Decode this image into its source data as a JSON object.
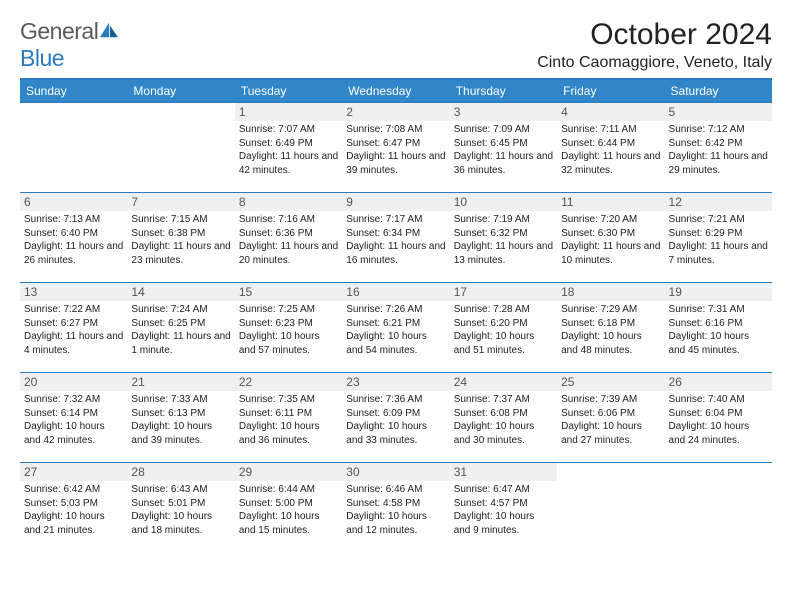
{
  "brand": {
    "name1": "General",
    "name2": "Blue"
  },
  "title": "October 2024",
  "location": "Cinto Caomaggiore, Veneto, Italy",
  "colors": {
    "header_bg": "#3186c9",
    "header_text": "#ffffff",
    "rule": "#2b7bbf",
    "daynum_bg": "#eef0f1",
    "text": "#222222",
    "logo_gray": "#5a5a5a",
    "logo_blue": "#2b7bbf"
  },
  "layout": {
    "cols": 7,
    "rows": 5,
    "first_weekday": "Sunday",
    "first_day_col": 2
  },
  "weekdays": [
    "Sunday",
    "Monday",
    "Tuesday",
    "Wednesday",
    "Thursday",
    "Friday",
    "Saturday"
  ],
  "days": [
    {
      "n": 1,
      "sunrise": "7:07 AM",
      "sunset": "6:49 PM",
      "daylight": "11 hours and 42 minutes."
    },
    {
      "n": 2,
      "sunrise": "7:08 AM",
      "sunset": "6:47 PM",
      "daylight": "11 hours and 39 minutes."
    },
    {
      "n": 3,
      "sunrise": "7:09 AM",
      "sunset": "6:45 PM",
      "daylight": "11 hours and 36 minutes."
    },
    {
      "n": 4,
      "sunrise": "7:11 AM",
      "sunset": "6:44 PM",
      "daylight": "11 hours and 32 minutes."
    },
    {
      "n": 5,
      "sunrise": "7:12 AM",
      "sunset": "6:42 PM",
      "daylight": "11 hours and 29 minutes."
    },
    {
      "n": 6,
      "sunrise": "7:13 AM",
      "sunset": "6:40 PM",
      "daylight": "11 hours and 26 minutes."
    },
    {
      "n": 7,
      "sunrise": "7:15 AM",
      "sunset": "6:38 PM",
      "daylight": "11 hours and 23 minutes."
    },
    {
      "n": 8,
      "sunrise": "7:16 AM",
      "sunset": "6:36 PM",
      "daylight": "11 hours and 20 minutes."
    },
    {
      "n": 9,
      "sunrise": "7:17 AM",
      "sunset": "6:34 PM",
      "daylight": "11 hours and 16 minutes."
    },
    {
      "n": 10,
      "sunrise": "7:19 AM",
      "sunset": "6:32 PM",
      "daylight": "11 hours and 13 minutes."
    },
    {
      "n": 11,
      "sunrise": "7:20 AM",
      "sunset": "6:30 PM",
      "daylight": "11 hours and 10 minutes."
    },
    {
      "n": 12,
      "sunrise": "7:21 AM",
      "sunset": "6:29 PM",
      "daylight": "11 hours and 7 minutes."
    },
    {
      "n": 13,
      "sunrise": "7:22 AM",
      "sunset": "6:27 PM",
      "daylight": "11 hours and 4 minutes."
    },
    {
      "n": 14,
      "sunrise": "7:24 AM",
      "sunset": "6:25 PM",
      "daylight": "11 hours and 1 minute."
    },
    {
      "n": 15,
      "sunrise": "7:25 AM",
      "sunset": "6:23 PM",
      "daylight": "10 hours and 57 minutes."
    },
    {
      "n": 16,
      "sunrise": "7:26 AM",
      "sunset": "6:21 PM",
      "daylight": "10 hours and 54 minutes."
    },
    {
      "n": 17,
      "sunrise": "7:28 AM",
      "sunset": "6:20 PM",
      "daylight": "10 hours and 51 minutes."
    },
    {
      "n": 18,
      "sunrise": "7:29 AM",
      "sunset": "6:18 PM",
      "daylight": "10 hours and 48 minutes."
    },
    {
      "n": 19,
      "sunrise": "7:31 AM",
      "sunset": "6:16 PM",
      "daylight": "10 hours and 45 minutes."
    },
    {
      "n": 20,
      "sunrise": "7:32 AM",
      "sunset": "6:14 PM",
      "daylight": "10 hours and 42 minutes."
    },
    {
      "n": 21,
      "sunrise": "7:33 AM",
      "sunset": "6:13 PM",
      "daylight": "10 hours and 39 minutes."
    },
    {
      "n": 22,
      "sunrise": "7:35 AM",
      "sunset": "6:11 PM",
      "daylight": "10 hours and 36 minutes."
    },
    {
      "n": 23,
      "sunrise": "7:36 AM",
      "sunset": "6:09 PM",
      "daylight": "10 hours and 33 minutes."
    },
    {
      "n": 24,
      "sunrise": "7:37 AM",
      "sunset": "6:08 PM",
      "daylight": "10 hours and 30 minutes."
    },
    {
      "n": 25,
      "sunrise": "7:39 AM",
      "sunset": "6:06 PM",
      "daylight": "10 hours and 27 minutes."
    },
    {
      "n": 26,
      "sunrise": "7:40 AM",
      "sunset": "6:04 PM",
      "daylight": "10 hours and 24 minutes."
    },
    {
      "n": 27,
      "sunrise": "6:42 AM",
      "sunset": "5:03 PM",
      "daylight": "10 hours and 21 minutes."
    },
    {
      "n": 28,
      "sunrise": "6:43 AM",
      "sunset": "5:01 PM",
      "daylight": "10 hours and 18 minutes."
    },
    {
      "n": 29,
      "sunrise": "6:44 AM",
      "sunset": "5:00 PM",
      "daylight": "10 hours and 15 minutes."
    },
    {
      "n": 30,
      "sunrise": "6:46 AM",
      "sunset": "4:58 PM",
      "daylight": "10 hours and 12 minutes."
    },
    {
      "n": 31,
      "sunrise": "6:47 AM",
      "sunset": "4:57 PM",
      "daylight": "10 hours and 9 minutes."
    }
  ],
  "labels": {
    "sunrise": "Sunrise:",
    "sunset": "Sunset:",
    "daylight": "Daylight:"
  }
}
